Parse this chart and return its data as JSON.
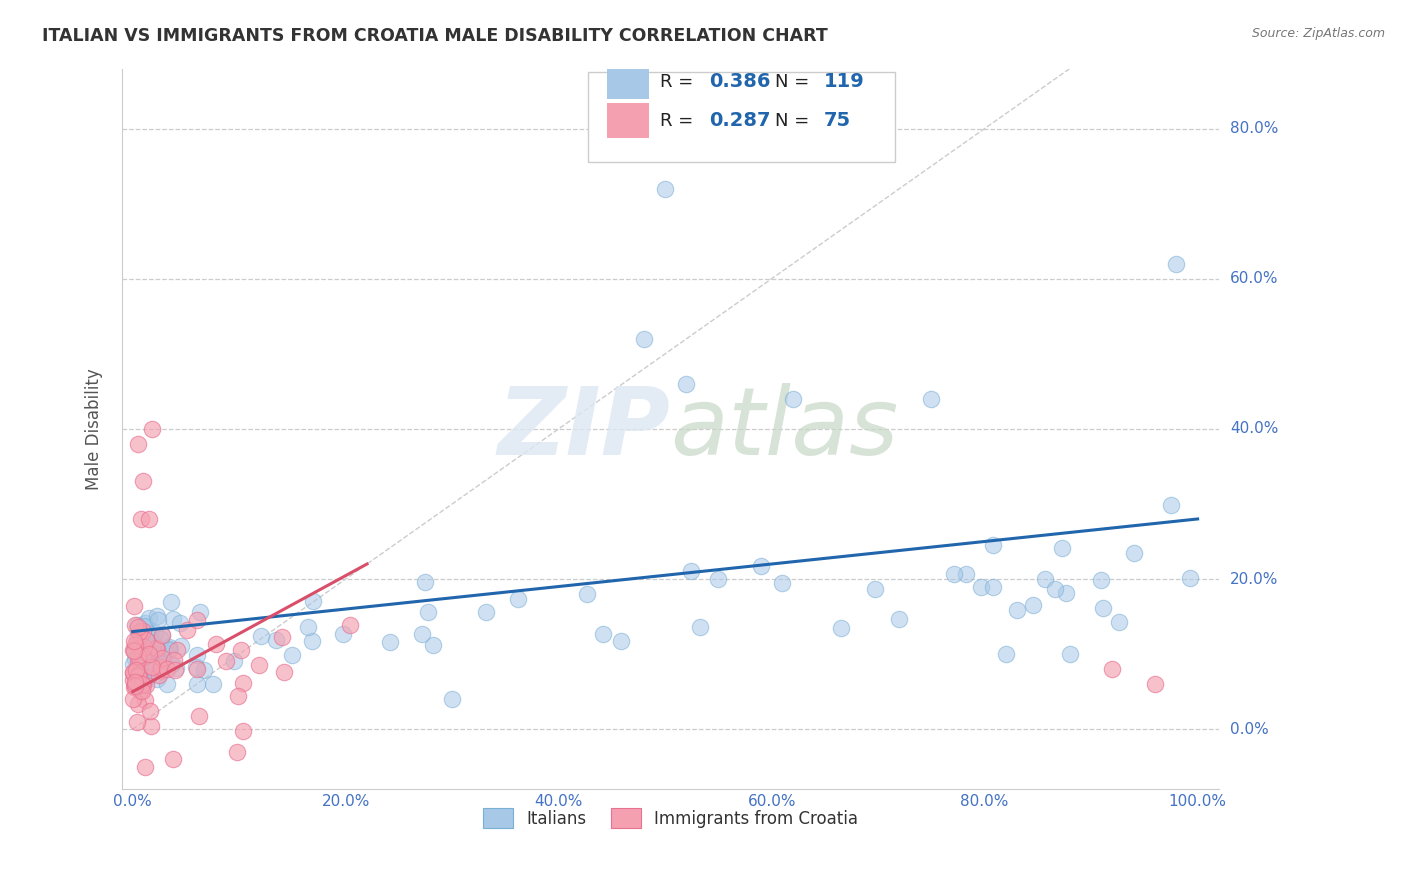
{
  "title": "ITALIAN VS IMMIGRANTS FROM CROATIA MALE DISABILITY CORRELATION CHART",
  "source": "Source: ZipAtlas.com",
  "ylabel": "Male Disability",
  "xtick_labels": [
    "0.0%",
    "20.0%",
    "40.0%",
    "60.0%",
    "80.0%",
    "100.0%"
  ],
  "ytick_labels": [
    "0.0%",
    "20.0%",
    "40.0%",
    "60.0%",
    "80.0%"
  ],
  "legend_r1": "R = 0.386",
  "legend_n1": "N = 119",
  "legend_r2": "R = 0.287",
  "legend_n2": "N = 75",
  "blue_color": "#a8c8e8",
  "blue_edge_color": "#7aafd4",
  "pink_color": "#f4a0b0",
  "pink_edge_color": "#e87090",
  "blue_line_color": "#2166ac",
  "pink_line_color": "#d94f6a",
  "diag_color": "#cccccc",
  "grid_color": "#cccccc",
  "watermark_color": "#d8e8f0",
  "bg_color": "#ffffff",
  "tick_color": "#4472c4",
  "label_color": "#555555",
  "title_color": "#333333",
  "source_color": "#777777"
}
